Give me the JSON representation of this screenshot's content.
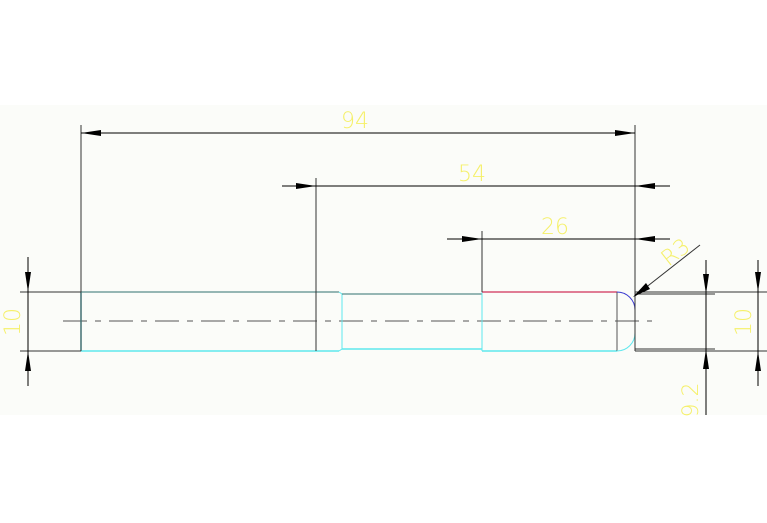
{
  "drawing": {
    "dimensions": {
      "overall_length": "94",
      "middle_length": "54",
      "end_length": "26",
      "fillet_radius": "R3",
      "left_diameter": "10",
      "right_diameter": "10",
      "end_diameter": "9.2"
    },
    "colors": {
      "background": "#fbfcf9",
      "dimension_text": "#f5f06a",
      "outline_cyan": "#5ee8ee",
      "outline_teal": "#2f6f6f",
      "edge_red": "#d0305a",
      "fillet_blue": "#3a3ad0"
    }
  }
}
